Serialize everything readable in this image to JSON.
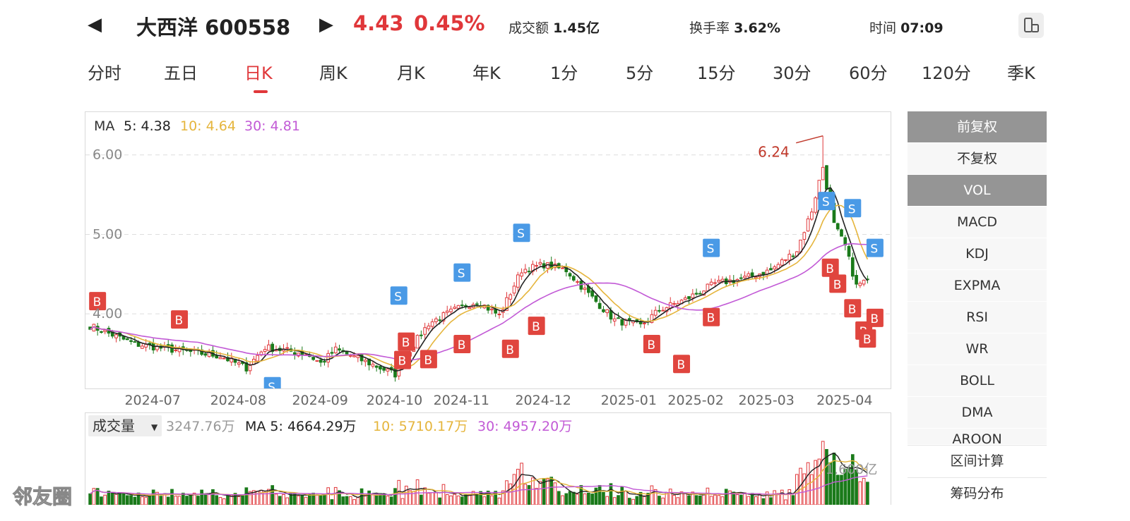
{
  "header": {
    "stock_name": "大西洋",
    "stock_code": "600558",
    "price": "4.43",
    "change_pct": "0.45%",
    "turnover_amount_label": "成交额",
    "turnover_amount": "1.45亿",
    "turnover_rate_label": "换手率",
    "turnover_rate": "3.62%",
    "time_label": "时间",
    "time": "07:09",
    "prev_icon": "triangle-left-icon",
    "next_icon": "triangle-right-icon",
    "rotate_icon": "phone-rotate-icon"
  },
  "tabs": [
    "分时",
    "五日",
    "日K",
    "周K",
    "月K",
    "年K",
    "1分",
    "5分",
    "15分",
    "30分",
    "60分",
    "120分",
    "季K"
  ],
  "active_tab": "日K",
  "ma_legend": {
    "label": "MA",
    "ma5": "5: 4.38",
    "ma10": "10: 4.64",
    "ma30": "30: 4.81"
  },
  "vol_legend": {
    "selector": "成交量",
    "value": "3247.76万",
    "ma5": "MA 5: 4664.29万",
    "ma10": "10: 5710.17万",
    "ma30": "30: 4957.20万",
    "axis_label": "1.600亿"
  },
  "colors": {
    "up": "#e0373a",
    "down": "#1a7a1a",
    "ma5": "#222222",
    "ma10": "#e5b53c",
    "ma30": "#c25ad6",
    "buy": "#e0453e",
    "sell": "#4a9ae6"
  },
  "side_buttons": [
    {
      "label": "前复权",
      "active": true
    },
    {
      "label": "不复权",
      "active": false
    },
    {
      "label": "VOL",
      "active": true
    },
    {
      "label": "MACD",
      "active": false
    },
    {
      "label": "KDJ",
      "active": false
    },
    {
      "label": "EXPMA",
      "active": false
    },
    {
      "label": "RSI",
      "active": false
    },
    {
      "label": "WR",
      "active": false
    },
    {
      "label": "BOLL",
      "active": false
    },
    {
      "label": "DMA",
      "active": false
    },
    {
      "label": "AROON",
      "active": false
    }
  ],
  "side_bottom": [
    "区间计算",
    "筹码分布"
  ],
  "watermark": "邻友圈",
  "chart_data": {
    "type": "candlestick",
    "y_ticks": [
      "6.00",
      "5.00",
      "4.00"
    ],
    "ylim": [
      3.15,
      6.45
    ],
    "x_ticks": [
      "2024-07",
      "2024-08",
      "2024-09",
      "2024-10",
      "2024-11",
      "2024-12",
      "2025-01",
      "2025-02",
      "2025-03",
      "2025-04"
    ],
    "x_tick_index": [
      17,
      40,
      62,
      82,
      100,
      122,
      145,
      163,
      182,
      203
    ],
    "n_days": 210,
    "high_label": "6.24",
    "high_value": 6.24,
    "high_index": 197,
    "anchors": [
      [
        0,
        3.85
      ],
      [
        12,
        3.62
      ],
      [
        22,
        3.55
      ],
      [
        35,
        3.47
      ],
      [
        42,
        3.32
      ],
      [
        47,
        3.58
      ],
      [
        58,
        3.5
      ],
      [
        62,
        3.38
      ],
      [
        66,
        3.55
      ],
      [
        75,
        3.38
      ],
      [
        82,
        3.24
      ],
      [
        87,
        3.62
      ],
      [
        91,
        3.88
      ],
      [
        98,
        4.05
      ],
      [
        104,
        4.16
      ],
      [
        110,
        3.98
      ],
      [
        116,
        4.55
      ],
      [
        122,
        4.62
      ],
      [
        128,
        4.55
      ],
      [
        134,
        4.25
      ],
      [
        141,
        3.92
      ],
      [
        148,
        3.85
      ],
      [
        153,
        4.05
      ],
      [
        160,
        4.18
      ],
      [
        168,
        4.38
      ],
      [
        176,
        4.45
      ],
      [
        183,
        4.55
      ],
      [
        190,
        4.8
      ],
      [
        194,
        5.3
      ],
      [
        197,
        5.85
      ],
      [
        200,
        5.12
      ],
      [
        203,
        4.85
      ],
      [
        206,
        4.35
      ],
      [
        209,
        4.43
      ]
    ],
    "signals": [
      {
        "type": "B",
        "index": 2,
        "price": 4.16
      },
      {
        "type": "B",
        "index": 24,
        "price": 3.93
      },
      {
        "type": "S",
        "index": 49,
        "price": 3.09
      },
      {
        "type": "S",
        "index": 83,
        "price": 4.23
      },
      {
        "type": "B",
        "index": 85,
        "price": 3.65
      },
      {
        "type": "B",
        "index": 84,
        "price": 3.42
      },
      {
        "type": "B",
        "index": 91,
        "price": 3.43
      },
      {
        "type": "S",
        "index": 100,
        "price": 4.52
      },
      {
        "type": "B",
        "index": 100,
        "price": 3.62
      },
      {
        "type": "B",
        "index": 113,
        "price": 3.56
      },
      {
        "type": "S",
        "index": 116,
        "price": 5.02
      },
      {
        "type": "B",
        "index": 120,
        "price": 3.85
      },
      {
        "type": "B",
        "index": 151,
        "price": 3.62
      },
      {
        "type": "B",
        "index": 159,
        "price": 3.37
      },
      {
        "type": "S",
        "index": 167,
        "price": 4.83
      },
      {
        "type": "B",
        "index": 167,
        "price": 3.96
      },
      {
        "type": "S",
        "index": 198,
        "price": 5.42
      },
      {
        "type": "B",
        "index": 199,
        "price": 4.58
      },
      {
        "type": "B",
        "index": 201,
        "price": 4.38
      },
      {
        "type": "S",
        "index": 205,
        "price": 5.33
      },
      {
        "type": "B",
        "index": 205,
        "price": 4.07
      },
      {
        "type": "S",
        "index": 211,
        "price": 4.83
      },
      {
        "type": "B",
        "index": 208,
        "price": 3.79
      },
      {
        "type": "B",
        "index": 209,
        "price": 3.69
      },
      {
        "type": "B",
        "index": 211,
        "price": 3.95
      }
    ]
  }
}
